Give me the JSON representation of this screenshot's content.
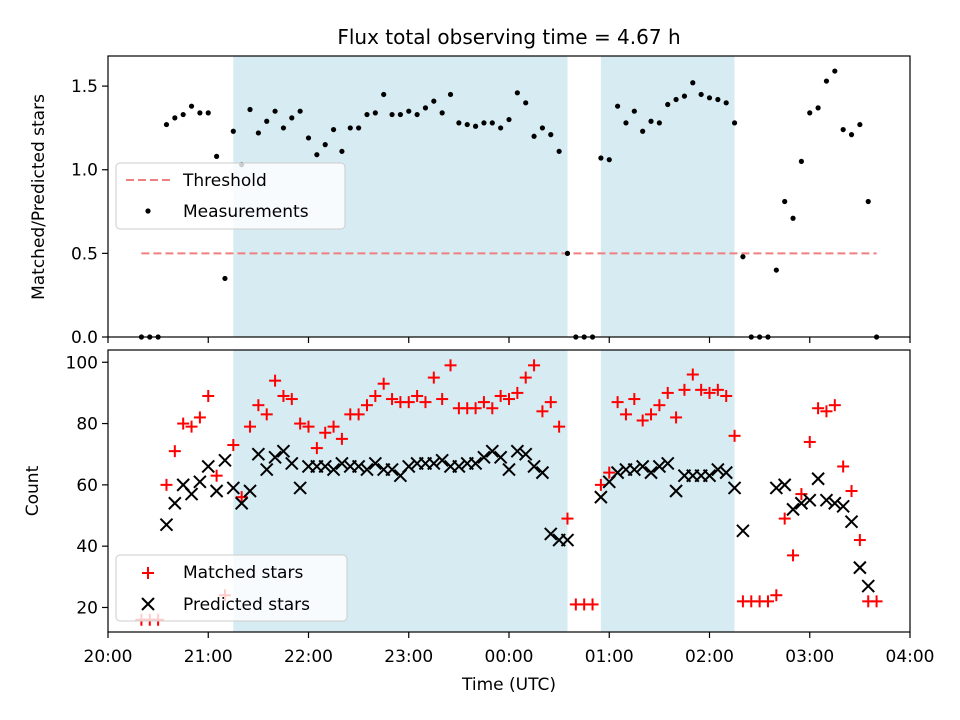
{
  "chart_data": {
    "type": "scatter",
    "title": "Flux total observing time = 4.67 h",
    "xlabel": "Time (UTC)",
    "x_unit": "hours",
    "xlim": [
      "20:00",
      "04:00"
    ],
    "x_ticks": [
      "20:00",
      "21:00",
      "22:00",
      "23:00",
      "00:00",
      "01:00",
      "02:00",
      "03:00",
      "04:00"
    ],
    "shaded_intervals": [
      {
        "start": "21:15",
        "end": "00:35",
        "color": "#add8e6"
      },
      {
        "start": "00:55",
        "end": "02:15",
        "color": "#add8e6"
      }
    ],
    "top_panel": {
      "ylabel": "Matched/Predicted stars",
      "ylim": [
        0,
        1.68
      ],
      "y_ticks": [
        "0.0",
        "0.5",
        "1.0",
        "1.5"
      ],
      "legend": {
        "position": "center-left",
        "entries": [
          "Threshold",
          "Measurements"
        ]
      },
      "threshold": {
        "name": "Threshold",
        "value": 0.5,
        "x_start": "20:20",
        "x_end": "03:40",
        "color": "#f08080"
      },
      "measurements": {
        "name": "Measurements",
        "color": "#000000",
        "x": [
          "20:20",
          "20:25",
          "20:30",
          "20:35",
          "20:40",
          "20:45",
          "20:50",
          "20:55",
          "21:00",
          "21:05",
          "21:10",
          "21:15",
          "21:20",
          "21:25",
          "21:30",
          "21:35",
          "21:40",
          "21:45",
          "21:50",
          "21:55",
          "22:00",
          "22:05",
          "22:10",
          "22:15",
          "22:20",
          "22:25",
          "22:30",
          "22:35",
          "22:40",
          "22:45",
          "22:50",
          "22:55",
          "23:00",
          "23:05",
          "23:10",
          "23:15",
          "23:20",
          "23:25",
          "23:30",
          "23:35",
          "23:40",
          "23:45",
          "23:50",
          "23:55",
          "00:00",
          "00:05",
          "00:10",
          "00:15",
          "00:20",
          "00:25",
          "00:30",
          "00:35",
          "00:40",
          "00:45",
          "00:50",
          "00:55",
          "01:00",
          "01:05",
          "01:10",
          "01:15",
          "01:20",
          "01:25",
          "01:30",
          "01:35",
          "01:40",
          "01:45",
          "01:50",
          "01:55",
          "02:00",
          "02:05",
          "02:10",
          "02:15",
          "02:20",
          "02:25",
          "02:30",
          "02:35",
          "02:40",
          "02:45",
          "02:50",
          "02:55",
          "03:00",
          "03:05",
          "03:10",
          "03:15",
          "03:20",
          "03:25",
          "03:30",
          "03:35",
          "03:40"
        ],
        "y": [
          0.0,
          0.0,
          0.0,
          1.27,
          1.31,
          1.33,
          1.38,
          1.34,
          1.34,
          1.08,
          0.35,
          1.23,
          1.03,
          1.36,
          1.22,
          1.29,
          1.35,
          1.25,
          1.31,
          1.35,
          1.19,
          1.09,
          1.15,
          1.24,
          1.11,
          1.25,
          1.25,
          1.33,
          1.34,
          1.45,
          1.33,
          1.33,
          1.35,
          1.33,
          1.37,
          1.41,
          1.34,
          1.45,
          1.28,
          1.27,
          1.26,
          1.28,
          1.28,
          1.25,
          1.3,
          1.46,
          1.4,
          1.2,
          1.25,
          1.21,
          1.11,
          0.5,
          0.0,
          0.0,
          0.0,
          1.07,
          1.06,
          1.38,
          1.28,
          1.35,
          1.23,
          1.29,
          1.28,
          1.39,
          1.42,
          1.44,
          1.52,
          1.45,
          1.43,
          1.42,
          1.4,
          1.28,
          0.48,
          0.0,
          0.0,
          0.0,
          0.4,
          0.81,
          0.71,
          1.05,
          1.34,
          1.37,
          1.53,
          1.59,
          1.24,
          1.21,
          1.27,
          0.81,
          0.0
        ]
      }
    },
    "bottom_panel": {
      "ylabel": "Count",
      "ylim": [
        12,
        104
      ],
      "y_ticks": [
        "20",
        "40",
        "60",
        "80",
        "100"
      ],
      "legend": {
        "position": "lower-left",
        "entries": [
          "Matched stars",
          "Predicted stars"
        ]
      },
      "series": [
        {
          "name": "Matched stars",
          "marker": "+",
          "color": "#ff0000",
          "x": [
            "20:20",
            "20:25",
            "20:30",
            "20:35",
            "20:40",
            "20:45",
            "20:50",
            "20:55",
            "21:00",
            "21:05",
            "21:10",
            "21:15",
            "21:20",
            "21:25",
            "21:30",
            "21:35",
            "21:40",
            "21:45",
            "21:50",
            "21:55",
            "22:00",
            "22:05",
            "22:10",
            "22:15",
            "22:20",
            "22:25",
            "22:30",
            "22:35",
            "22:40",
            "22:45",
            "22:50",
            "22:55",
            "23:00",
            "23:05",
            "23:10",
            "23:15",
            "23:20",
            "23:25",
            "23:30",
            "23:35",
            "23:40",
            "23:45",
            "23:50",
            "23:55",
            "00:00",
            "00:05",
            "00:10",
            "00:15",
            "00:20",
            "00:25",
            "00:30",
            "00:35",
            "00:40",
            "00:45",
            "00:50",
            "00:55",
            "01:00",
            "01:05",
            "01:10",
            "01:15",
            "01:20",
            "01:25",
            "01:30",
            "01:35",
            "01:40",
            "01:45",
            "01:50",
            "01:55",
            "02:00",
            "02:05",
            "02:10",
            "02:15",
            "02:20",
            "02:25",
            "02:30",
            "02:35",
            "02:40",
            "02:45",
            "02:50",
            "02:55",
            "03:00",
            "03:05",
            "03:10",
            "03:15",
            "03:20",
            "03:25",
            "03:30",
            "03:35",
            "03:40"
          ],
          "y": [
            16,
            16,
            16,
            60,
            71,
            80,
            79,
            82,
            89,
            63,
            24,
            73,
            56,
            79,
            86,
            83,
            94,
            89,
            88,
            80,
            79,
            72,
            77,
            79,
            75,
            83,
            83,
            86,
            89,
            93,
            88,
            87,
            87,
            89,
            87,
            95,
            88,
            99,
            85,
            85,
            85,
            87,
            85,
            89,
            88,
            90,
            95,
            99,
            84,
            87,
            79,
            49,
            21,
            21,
            21,
            60,
            64,
            87,
            83,
            88,
            81,
            83,
            86,
            90,
            82,
            91,
            96,
            91,
            90,
            91,
            89,
            76,
            22,
            22,
            22,
            22,
            24,
            49,
            37,
            57,
            74,
            85,
            84,
            86,
            66,
            58,
            42,
            22,
            22
          ]
        },
        {
          "name": "Predicted stars",
          "marker": "x",
          "color": "#000000",
          "x": [
            "20:35",
            "20:40",
            "20:45",
            "20:50",
            "20:55",
            "21:00",
            "21:05",
            "21:10",
            "21:15",
            "21:20",
            "21:25",
            "21:30",
            "21:35",
            "21:40",
            "21:45",
            "21:50",
            "21:55",
            "22:00",
            "22:05",
            "22:10",
            "22:15",
            "22:20",
            "22:25",
            "22:30",
            "22:35",
            "22:40",
            "22:45",
            "22:50",
            "22:55",
            "23:00",
            "23:05",
            "23:10",
            "23:15",
            "23:20",
            "23:25",
            "23:30",
            "23:35",
            "23:40",
            "23:45",
            "23:50",
            "23:55",
            "00:00",
            "00:05",
            "00:10",
            "00:15",
            "00:20",
            "00:25",
            "00:30",
            "00:35",
            "00:55",
            "01:00",
            "01:05",
            "01:10",
            "01:15",
            "01:20",
            "01:25",
            "01:30",
            "01:35",
            "01:40",
            "01:45",
            "01:50",
            "01:55",
            "02:00",
            "02:05",
            "02:10",
            "02:15",
            "02:20",
            "02:40",
            "02:45",
            "02:50",
            "02:55",
            "03:00",
            "03:05",
            "03:10",
            "03:15",
            "03:20",
            "03:25",
            "03:30",
            "03:35"
          ],
          "y": [
            47,
            54,
            60,
            57,
            61,
            66,
            58,
            68,
            59,
            54,
            58,
            70,
            65,
            69,
            71,
            67,
            59,
            66,
            66,
            66,
            65,
            67,
            66,
            66,
            65,
            67,
            65,
            65,
            63,
            66,
            67,
            67,
            67,
            68,
            66,
            66,
            67,
            67,
            69,
            71,
            69,
            65,
            71,
            70,
            66,
            64,
            44,
            42,
            42,
            56,
            61,
            64,
            65,
            65,
            66,
            64,
            66,
            67,
            58,
            63,
            63,
            63,
            63,
            65,
            64,
            59,
            45,
            59,
            60,
            52,
            54,
            55,
            62,
            55,
            54,
            53,
            48,
            33,
            27
          ]
        }
      ]
    }
  }
}
